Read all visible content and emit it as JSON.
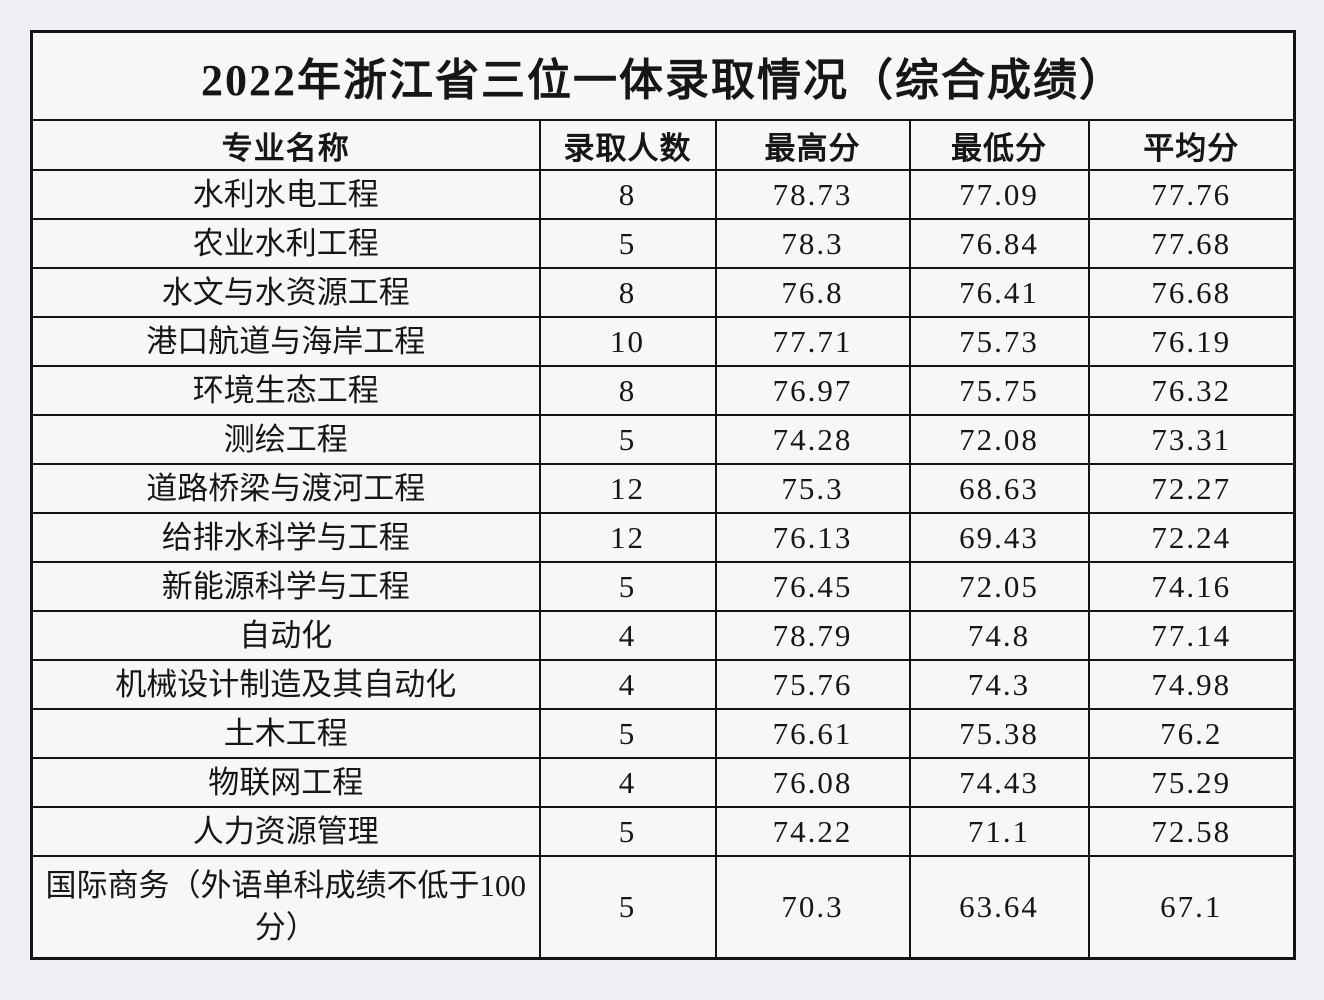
{
  "table": {
    "title": "2022年浙江省三位一体录取情况（综合成绩）",
    "columns": [
      "专业名称",
      "录取人数",
      "最高分",
      "最低分",
      "平均分"
    ],
    "rows": [
      [
        "水利水电工程",
        "8",
        "78.73",
        "77.09",
        "77.76"
      ],
      [
        "农业水利工程",
        "5",
        "78.3",
        "76.84",
        "77.68"
      ],
      [
        "水文与水资源工程",
        "8",
        "76.8",
        "76.41",
        "76.68"
      ],
      [
        "港口航道与海岸工程",
        "10",
        "77.71",
        "75.73",
        "76.19"
      ],
      [
        "环境生态工程",
        "8",
        "76.97",
        "75.75",
        "76.32"
      ],
      [
        "测绘工程",
        "5",
        "74.28",
        "72.08",
        "73.31"
      ],
      [
        "道路桥梁与渡河工程",
        "12",
        "75.3",
        "68.63",
        "72.27"
      ],
      [
        "给排水科学与工程",
        "12",
        "76.13",
        "69.43",
        "72.24"
      ],
      [
        "新能源科学与工程",
        "5",
        "76.45",
        "72.05",
        "74.16"
      ],
      [
        "自动化",
        "4",
        "78.79",
        "74.8",
        "77.14"
      ],
      [
        "机械设计制造及其自动化",
        "4",
        "75.76",
        "74.3",
        "74.98"
      ],
      [
        "土木工程",
        "5",
        "76.61",
        "75.38",
        "76.2"
      ],
      [
        "物联网工程",
        "4",
        "76.08",
        "74.43",
        "75.29"
      ],
      [
        "人力资源管理",
        "5",
        "74.22",
        "71.1",
        "72.58"
      ],
      [
        "国际商务（外语单科成绩不低于100分）",
        "5",
        "70.3",
        "63.64",
        "67.1"
      ]
    ],
    "colors": {
      "page_bg": "#edeff2",
      "cell_bg": "#f6f7f9",
      "border": "#141414",
      "text": "#161616"
    }
  }
}
